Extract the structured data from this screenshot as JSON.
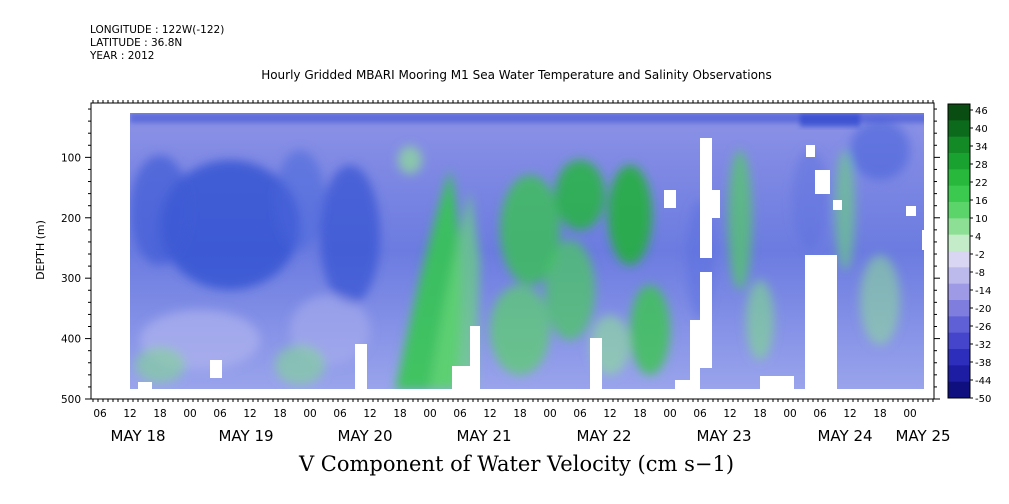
{
  "header": {
    "longitude": "LONGITUDE : 122W(-122)",
    "latitude": "LATITUDE : 36.8N",
    "year": "YEAR : 2012"
  },
  "chart_data": {
    "type": "heatmap",
    "title": "Hourly Gridded MBARI Mooring M1 Sea Water Temperature and Salinity Observations",
    "bottom_title": "V Component of Water Velocity (cm s−1)",
    "ylabel": "DEPTH (m)",
    "ylim": [
      500,
      10
    ],
    "y_ticks": [
      100,
      200,
      300,
      400,
      500
    ],
    "x_hour_ticks": [
      "06",
      "12",
      "18",
      "00",
      "06",
      "12",
      "18",
      "00",
      "06",
      "12",
      "18",
      "00",
      "06",
      "12",
      "18",
      "00",
      "06",
      "12",
      "18",
      "00",
      "06",
      "12",
      "18",
      "00",
      "06",
      "12",
      "18",
      "00",
      "06",
      "12",
      "18",
      "00",
      "06",
      "12",
      "18",
      "00"
    ],
    "x_date_labels": [
      "MAY 18",
      "MAY 19",
      "MAY 20",
      "MAY 21",
      "MAY 22",
      "MAY 23",
      "MAY 24",
      "MAY 25"
    ],
    "colorbar": {
      "labels": [
        "46",
        "40",
        "34",
        "28",
        "22",
        "16",
        "10",
        "4",
        "-2",
        "-8",
        "-14",
        "-20",
        "-26",
        "-32",
        "-38",
        "-44",
        "-50"
      ],
      "range": [
        -50,
        48
      ],
      "colors_high_to_low": [
        "#0a4d12",
        "#0c6a1c",
        "#138a26",
        "#1aa231",
        "#27b83c",
        "#3cc950",
        "#5bd46a",
        "#8edf96",
        "#c4ecc8",
        "#d8d6f2",
        "#bcb9ec",
        "#9e9ae6",
        "#7f7ddd",
        "#6060d6",
        "#4545cc",
        "#2e2ebc",
        "#1d1da3",
        "#0f0f80"
      ]
    },
    "data_note": "Field values drawn as heatmap; approximate regional velocities in cm s-1.",
    "regions": [
      {
        "time_start": "MAY 18 12",
        "time_end": "MAY 20 18",
        "depth_top": 20,
        "depth_bottom": 480,
        "value": -22
      },
      {
        "time_start": "MAY 20 18",
        "time_end": "MAY 22 24",
        "depth_top": 120,
        "depth_bottom": 480,
        "value": 12
      },
      {
        "time_start": "MAY 23 00",
        "time_end": "MAY 24 00",
        "depth_top": 20,
        "depth_bottom": 480,
        "value": -8
      },
      {
        "time_start": "MAY 24 00",
        "time_end": "MAY 25 06",
        "depth_top": 20,
        "depth_bottom": 480,
        "value": -14
      }
    ]
  }
}
